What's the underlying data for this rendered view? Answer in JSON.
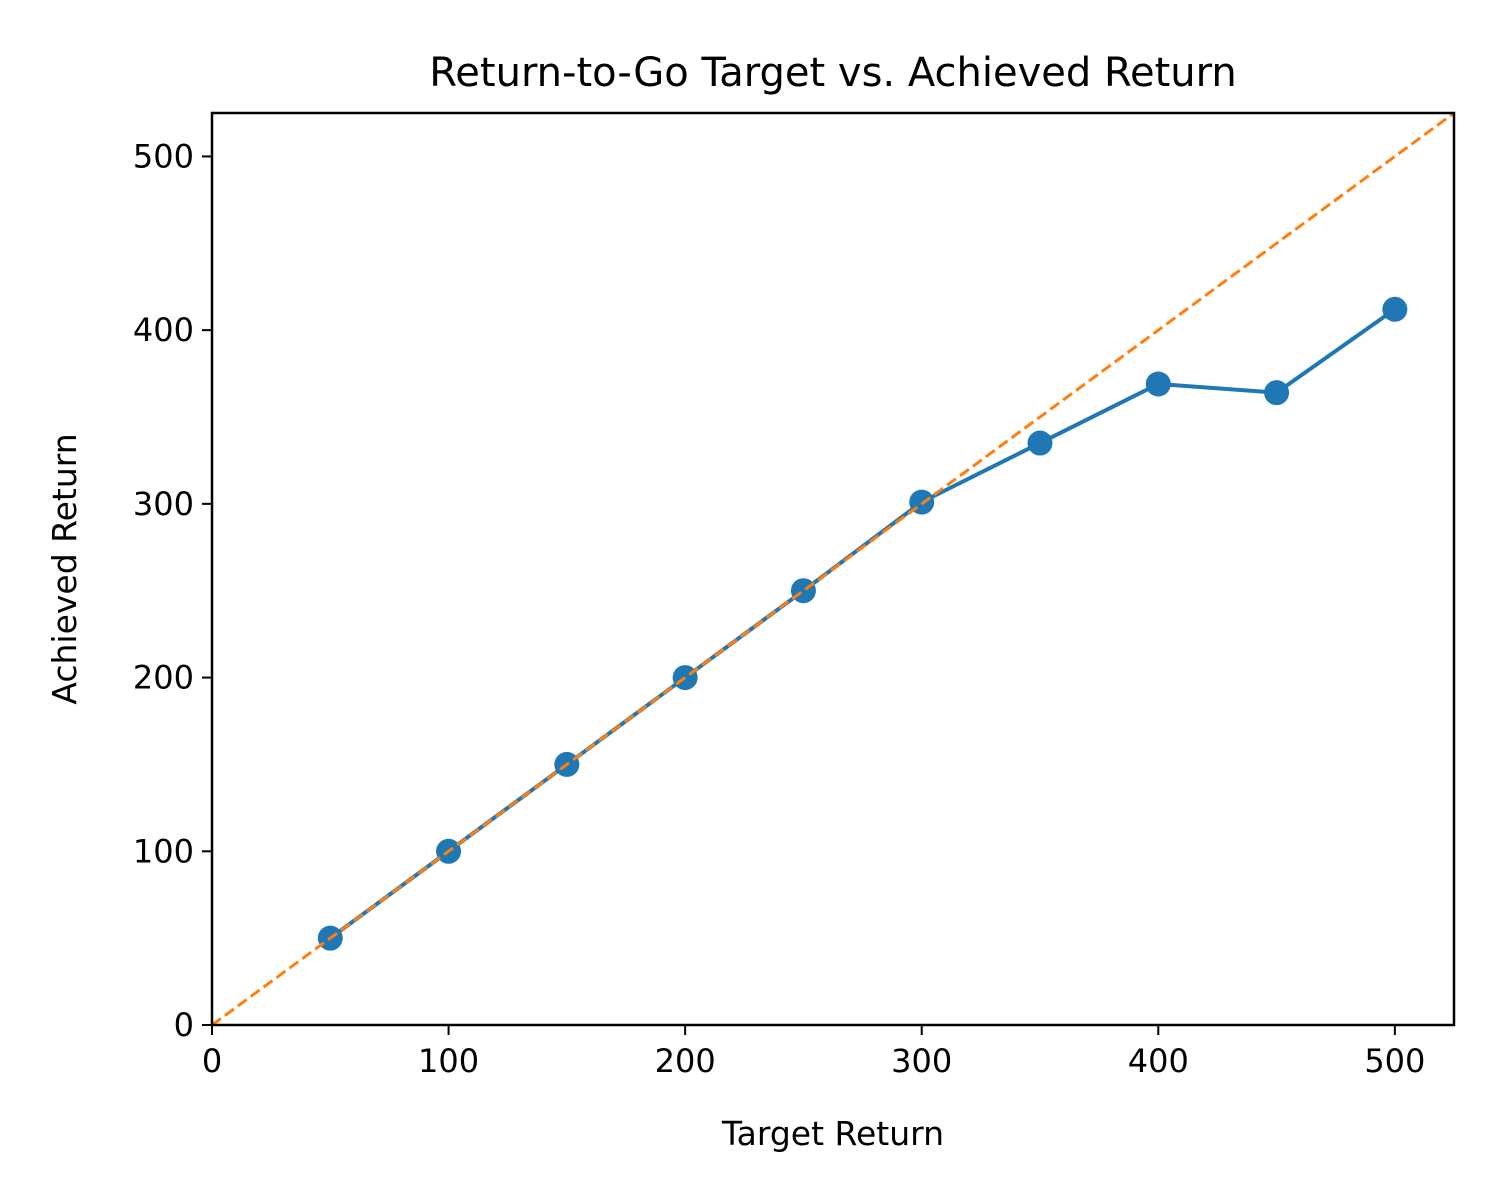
{
  "chart_data": {
    "type": "line",
    "title": "Return-to-Go Target vs. Achieved Return",
    "xlabel": "Target Return",
    "ylabel": "Achieved Return",
    "xlim": [
      0,
      525
    ],
    "ylim": [
      0,
      525
    ],
    "x_ticks": [
      0,
      100,
      200,
      300,
      400,
      500
    ],
    "y_ticks": [
      0,
      100,
      200,
      300,
      400,
      500
    ],
    "grid": false,
    "legend": "none",
    "series": [
      {
        "style": "solid-line-with-circle-markers",
        "color": "#1f77b4",
        "x": [
          50,
          100,
          150,
          200,
          250,
          300,
          350,
          400,
          450,
          500
        ],
        "y": [
          50,
          100,
          150,
          200,
          250,
          301,
          335,
          369,
          364,
          412
        ]
      },
      {
        "style": "dashed-diagonal-reference",
        "color": "#ff7f0e",
        "x": [
          0,
          525
        ],
        "y": [
          0,
          525
        ]
      }
    ]
  }
}
